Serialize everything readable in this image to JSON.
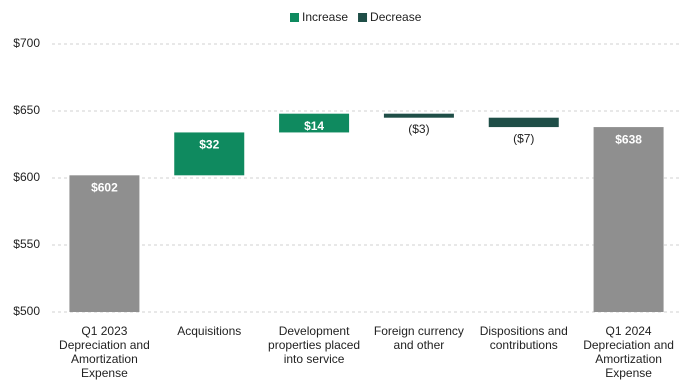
{
  "chart_data": {
    "type": "waterfall",
    "categories": [
      "Q1 2023 Depreciation and Amortization Expense",
      "Acquisitions",
      "Development properties placed into service",
      "Foreign currency and other",
      "Dispositions and contributions",
      "Q1 2024 Depreciation and Amortization Expense"
    ],
    "values": [
      602,
      32,
      14,
      -3,
      -7,
      638
    ],
    "value_labels": [
      "$602",
      "$32",
      "$14",
      "($3)",
      "($7)",
      "$638"
    ],
    "series": [
      {
        "name": "Increase",
        "color": "#0f8a5f"
      },
      {
        "name": "Decrease",
        "color": "#1f4e47"
      }
    ],
    "total_color": "#8f8f8f",
    "ylim": [
      500,
      700
    ],
    "yticks": [
      {
        "value": 500,
        "label": "$500"
      },
      {
        "value": 550,
        "label": "$550"
      },
      {
        "value": 600,
        "label": "$600"
      },
      {
        "value": 650,
        "label": "$650"
      },
      {
        "value": 700,
        "label": "$700"
      }
    ],
    "grid": true
  }
}
